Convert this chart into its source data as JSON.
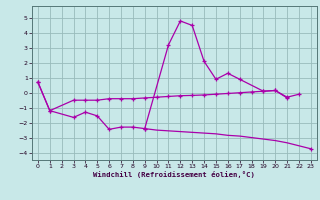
{
  "bg_color": "#c8e8e8",
  "grid_color": "#99bbbb",
  "line_color": "#aa00aa",
  "xlabel": "Windchill (Refroidissement éolien,°C)",
  "xlim": [
    -0.5,
    23.5
  ],
  "ylim": [
    -4.5,
    5.8
  ],
  "yticks": [
    -4,
    -3,
    -2,
    -1,
    0,
    1,
    2,
    3,
    4,
    5
  ],
  "xticks": [
    0,
    1,
    2,
    3,
    4,
    5,
    6,
    7,
    8,
    9,
    10,
    11,
    12,
    13,
    14,
    15,
    16,
    17,
    18,
    19,
    20,
    21,
    22,
    23
  ],
  "line1_x": [
    0,
    1,
    3,
    4,
    5,
    6,
    7,
    8,
    9,
    10,
    11,
    12,
    13,
    14,
    15,
    16,
    17,
    18,
    19,
    20,
    21,
    22
  ],
  "line1_y": [
    0.7,
    -1.2,
    -0.5,
    -0.5,
    -0.5,
    -0.4,
    -0.4,
    -0.4,
    -0.35,
    -0.3,
    -0.25,
    -0.2,
    -0.18,
    -0.15,
    -0.1,
    -0.05,
    0.0,
    0.05,
    0.1,
    0.15,
    -0.3,
    -0.1
  ],
  "line2_x": [
    0,
    1,
    3,
    4,
    5,
    6,
    7,
    8,
    9,
    11,
    12,
    13,
    14,
    15,
    16,
    17,
    19,
    20,
    21
  ],
  "line2_y": [
    0.7,
    -1.2,
    -1.65,
    -1.3,
    -1.55,
    -2.45,
    -2.3,
    -2.3,
    -2.4,
    3.2,
    4.8,
    4.5,
    2.1,
    0.9,
    1.3,
    0.9,
    0.1,
    0.15,
    -0.35
  ],
  "line3_x": [
    9,
    10,
    11,
    12,
    13,
    14,
    15,
    16,
    17,
    18,
    19,
    20,
    21,
    22,
    23
  ],
  "line3_y": [
    -2.4,
    -2.5,
    -2.55,
    -2.6,
    -2.65,
    -2.7,
    -2.75,
    -2.85,
    -2.9,
    -3.0,
    -3.1,
    -3.2,
    -3.35,
    -3.55,
    -3.75
  ]
}
